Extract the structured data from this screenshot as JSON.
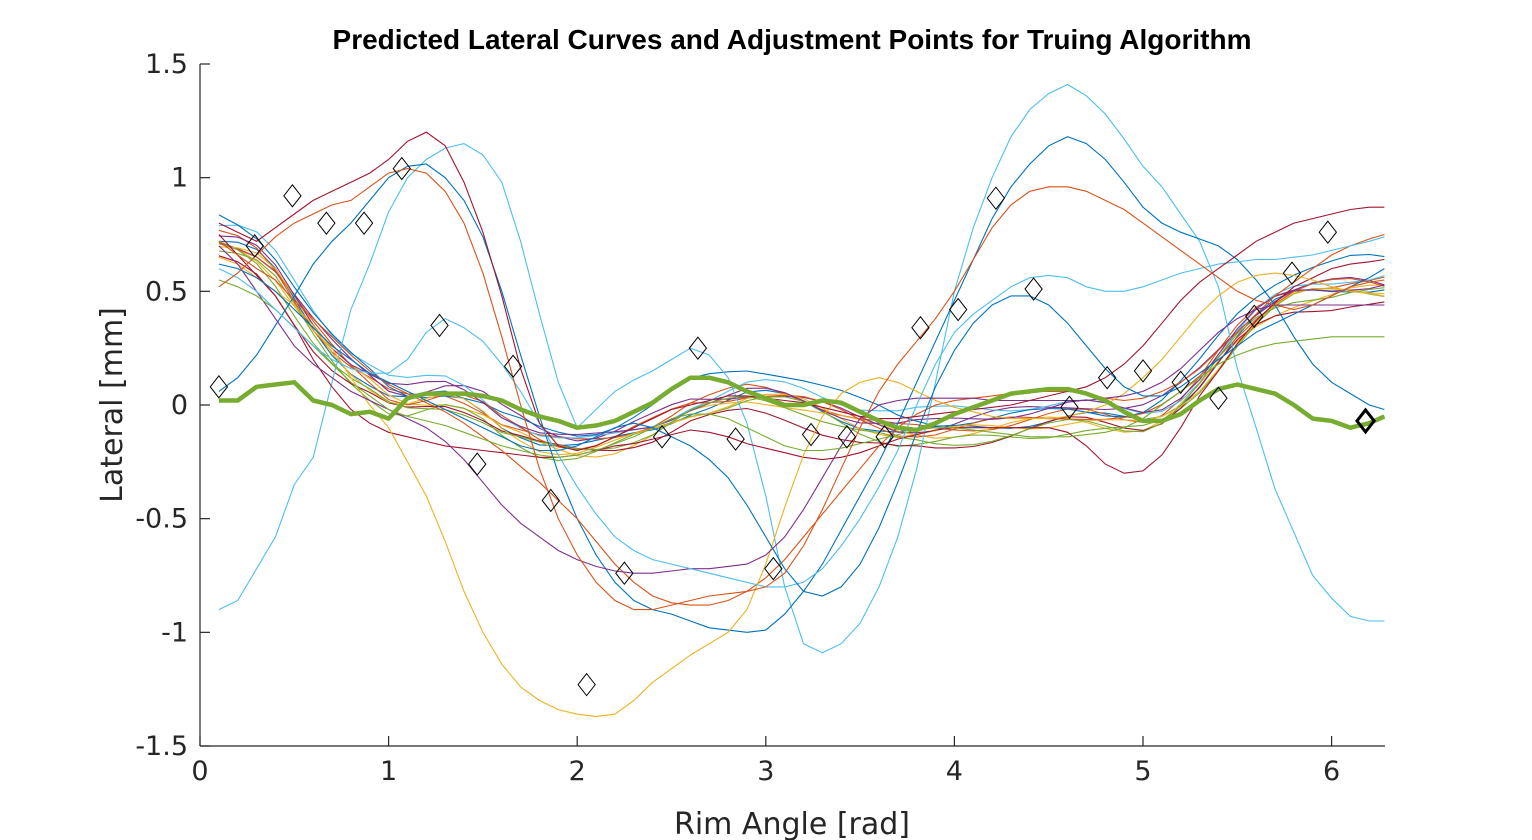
{
  "chart_data": {
    "type": "line",
    "title": "Predicted Lateral Curves and Adjustment Points for Truing Algorithm",
    "xlabel": "Rim Angle [rad]",
    "ylabel": "Lateral [mm]",
    "xlim": [
      0,
      6.2832
    ],
    "ylim": [
      -1.5,
      1.5
    ],
    "xticks": [
      0,
      1,
      2,
      3,
      4,
      5,
      6
    ],
    "xtick_labels": [
      "0",
      "1",
      "2",
      "3",
      "4",
      "5",
      "6"
    ],
    "yticks": [
      -1.5,
      -1,
      -0.5,
      0,
      0.5,
      1,
      1.5
    ],
    "ytick_labels": [
      "-1.5",
      "-1",
      "-0.5",
      "0",
      "0.5",
      "1",
      "1.5"
    ],
    "grid": false,
    "legend": "none",
    "colors": [
      "#0072BD",
      "#D95319",
      "#EDB120",
      "#7E2F8E",
      "#77AC30",
      "#4DBEEE",
      "#A2142F"
    ],
    "highlight_color": "#77AC30",
    "marker_color": "#000000",
    "x": [
      0.1,
      0.2,
      0.3,
      0.4,
      0.5,
      0.6,
      0.7,
      0.8,
      0.9,
      1.0,
      1.1,
      1.2,
      1.3,
      1.4,
      1.5,
      1.6,
      1.7,
      1.8,
      1.9,
      2.0,
      2.1,
      2.2,
      2.3,
      2.4,
      2.5,
      2.6,
      2.7,
      2.8,
      2.9,
      3.0,
      3.1,
      3.2,
      3.3,
      3.4,
      3.5,
      3.6,
      3.7,
      3.8,
      3.9,
      4.0,
      4.1,
      4.2,
      4.3,
      4.4,
      4.5,
      4.6,
      4.7,
      4.8,
      4.9,
      5.0,
      5.1,
      5.2,
      5.3,
      5.4,
      5.5,
      5.6,
      5.7,
      5.8,
      5.9,
      6.0,
      6.1,
      6.2,
      6.28
    ],
    "series": [
      {
        "values": [
          -0.9,
          -0.86,
          -0.72,
          -0.58,
          -0.35,
          -0.23,
          0.1,
          0.42,
          0.62,
          0.85,
          1.0,
          1.08,
          1.13,
          1.15,
          1.1,
          0.98,
          0.72,
          0.4,
          0.1,
          -0.1,
          -0.02,
          0.06,
          0.11,
          0.15,
          0.2,
          0.25,
          0.22,
          0.12,
          -0.08,
          -0.4,
          -0.8,
          -1.05,
          -1.09,
          -1.05,
          -0.96,
          -0.8,
          -0.58,
          -0.28,
          0.1,
          0.5,
          0.78,
          1.0,
          1.18,
          1.3,
          1.37,
          1.41,
          1.36,
          1.28,
          1.17,
          1.05,
          0.96,
          0.84,
          0.72,
          0.52,
          0.16,
          -0.1,
          -0.37,
          -0.56,
          -0.75,
          -0.85,
          -0.93,
          -0.95,
          -0.95
        ]
      },
      {
        "values": [
          0.75,
          0.66,
          0.57,
          0.48,
          0.35,
          0.2,
          0.08,
          -0.02,
          -0.08,
          -0.12,
          -0.14,
          -0.16,
          -0.18,
          -0.19,
          -0.2,
          -0.21,
          -0.22,
          -0.23,
          -0.23,
          -0.22,
          -0.2,
          -0.18,
          -0.17,
          -0.15,
          -0.13,
          -0.11,
          -0.12,
          -0.14,
          -0.17,
          -0.19,
          -0.21,
          -0.23,
          -0.24,
          -0.23,
          -0.21,
          -0.18,
          -0.15,
          -0.13,
          -0.11,
          -0.1,
          -0.1,
          -0.1,
          -0.1,
          -0.1,
          -0.1,
          -0.12,
          -0.18,
          -0.26,
          -0.3,
          -0.29,
          -0.22,
          -0.1,
          0.04,
          0.15,
          0.27,
          0.37,
          0.45,
          0.52,
          0.56,
          0.6,
          0.62,
          0.63,
          0.64
        ]
      },
      {
        "values": [
          0.06,
          0.12,
          0.22,
          0.35,
          0.48,
          0.62,
          0.72,
          0.8,
          0.9,
          1.0,
          1.05,
          1.06,
          1.0,
          0.9,
          0.74,
          0.5,
          0.22,
          -0.05,
          -0.3,
          -0.5,
          -0.66,
          -0.78,
          -0.86,
          -0.9,
          -0.92,
          -0.95,
          -0.98,
          -0.99,
          -1.0,
          -0.99,
          -0.92,
          -0.82,
          -0.7,
          -0.55,
          -0.4,
          -0.25,
          -0.08,
          0.1,
          0.28,
          0.46,
          0.64,
          0.82,
          0.96,
          1.06,
          1.14,
          1.18,
          1.15,
          1.08,
          0.98,
          0.87,
          0.8,
          0.76,
          0.73,
          0.7,
          0.64,
          0.55,
          0.44,
          0.3,
          0.18,
          0.1,
          0.05,
          0.0,
          -0.02
        ]
      },
      {
        "values": [
          0.72,
          0.66,
          0.6,
          0.55,
          0.46,
          0.38,
          0.3,
          0.22,
          0.15,
          0.09,
          0.05,
          0.01,
          -0.03,
          -0.08,
          -0.14,
          -0.2,
          -0.27,
          -0.34,
          -0.42,
          -0.5,
          -0.6,
          -0.7,
          -0.78,
          -0.84,
          -0.87,
          -0.88,
          -0.88,
          -0.86,
          -0.82,
          -0.76,
          -0.68,
          -0.58,
          -0.48,
          -0.38,
          -0.28,
          -0.18,
          -0.1,
          -0.04,
          0.0,
          0.02,
          0.03,
          0.04,
          0.05,
          0.06,
          0.06,
          0.06,
          0.05,
          0.03,
          0.02,
          0.03,
          0.06,
          0.1,
          0.16,
          0.24,
          0.32,
          0.4,
          0.48,
          0.54,
          0.6,
          0.66,
          0.7,
          0.73,
          0.75
        ]
      },
      {
        "values": [
          0.65,
          0.62,
          0.56,
          0.5,
          0.44,
          0.35,
          0.25,
          0.12,
          0.0,
          -0.1,
          -0.25,
          -0.4,
          -0.6,
          -0.82,
          -1.0,
          -1.14,
          -1.24,
          -1.3,
          -1.34,
          -1.36,
          -1.37,
          -1.36,
          -1.3,
          -1.22,
          -1.16,
          -1.1,
          -1.05,
          -1.0,
          -0.9,
          -0.7,
          -0.45,
          -0.22,
          -0.05,
          0.05,
          0.1,
          0.12,
          0.1,
          0.06,
          0.02,
          -0.01,
          -0.03,
          -0.05,
          -0.06,
          -0.06,
          -0.06,
          -0.05,
          -0.03,
          0.0,
          0.05,
          0.12,
          0.2,
          0.3,
          0.4,
          0.48,
          0.54,
          0.57,
          0.58,
          0.57,
          0.55,
          0.52,
          0.5,
          0.49,
          0.48
        ]
      },
      {
        "values": [
          0.7,
          0.62,
          0.5,
          0.38,
          0.26,
          0.18,
          0.12,
          0.06,
          0.02,
          -0.02,
          -0.06,
          -0.1,
          -0.16,
          -0.24,
          -0.34,
          -0.44,
          -0.52,
          -0.58,
          -0.64,
          -0.68,
          -0.71,
          -0.73,
          -0.74,
          -0.74,
          -0.73,
          -0.72,
          -0.72,
          -0.71,
          -0.7,
          -0.66,
          -0.58,
          -0.46,
          -0.32,
          -0.18,
          -0.06,
          0.0,
          0.02,
          0.03,
          0.03,
          0.03,
          0.03,
          0.02,
          0.02,
          0.02,
          0.02,
          0.02,
          0.02,
          0.03,
          0.04,
          0.06,
          0.1,
          0.16,
          0.24,
          0.32,
          0.38,
          0.42,
          0.44,
          0.44,
          0.44,
          0.44,
          0.44,
          0.44,
          0.44
        ]
      },
      {
        "values": [
          0.55,
          0.52,
          0.48,
          0.42,
          0.34,
          0.26,
          0.18,
          0.1,
          0.04,
          -0.02,
          -0.05,
          -0.07,
          -0.09,
          -0.12,
          -0.15,
          -0.18,
          -0.2,
          -0.22,
          -0.23,
          -0.22,
          -0.2,
          -0.17,
          -0.14,
          -0.1,
          -0.06,
          -0.04,
          -0.04,
          -0.06,
          -0.1,
          -0.14,
          -0.18,
          -0.2,
          -0.2,
          -0.19,
          -0.17,
          -0.15,
          -0.13,
          -0.11,
          -0.1,
          -0.1,
          -0.11,
          -0.12,
          -0.13,
          -0.14,
          -0.14,
          -0.14,
          -0.13,
          -0.12,
          -0.1,
          -0.06,
          0.0,
          0.06,
          0.12,
          0.18,
          0.22,
          0.25,
          0.27,
          0.28,
          0.29,
          0.3,
          0.3,
          0.3,
          0.3
        ]
      },
      {
        "values": [
          0.6,
          0.56,
          0.5,
          0.42,
          0.34,
          0.26,
          0.2,
          0.16,
          0.14,
          0.14,
          0.2,
          0.32,
          0.38,
          0.34,
          0.28,
          0.18,
          0.06,
          -0.08,
          -0.22,
          -0.36,
          -0.48,
          -0.58,
          -0.64,
          -0.68,
          -0.7,
          -0.72,
          -0.74,
          -0.76,
          -0.78,
          -0.8,
          -0.8,
          -0.78,
          -0.72,
          -0.62,
          -0.5,
          -0.36,
          -0.2,
          0.0,
          0.18,
          0.32,
          0.4,
          0.46,
          0.52,
          0.56,
          0.57,
          0.56,
          0.52,
          0.5,
          0.5,
          0.52,
          0.55,
          0.58,
          0.6,
          0.62,
          0.63,
          0.64,
          0.64,
          0.65,
          0.66,
          0.68,
          0.7,
          0.72,
          0.74
        ]
      },
      {
        "values": [
          0.8,
          0.76,
          0.72,
          0.78,
          0.84,
          0.9,
          0.94,
          0.98,
          1.02,
          1.08,
          1.16,
          1.2,
          1.14,
          0.98,
          0.76,
          0.48,
          0.16,
          -0.08,
          -0.18,
          -0.2,
          -0.18,
          -0.14,
          -0.1,
          -0.06,
          -0.02,
          0.0,
          0.02,
          0.04,
          0.04,
          0.03,
          0.02,
          0.01,
          -0.01,
          -0.03,
          -0.05,
          -0.06,
          -0.06,
          -0.05,
          -0.04,
          -0.03,
          -0.02,
          -0.01,
          0.0,
          0.02,
          0.04,
          0.06,
          0.08,
          0.12,
          0.18,
          0.26,
          0.36,
          0.46,
          0.54,
          0.6,
          0.66,
          0.72,
          0.76,
          0.8,
          0.82,
          0.84,
          0.86,
          0.87,
          0.87
        ]
      },
      {
        "values": [
          0.62,
          0.6,
          0.56,
          0.5,
          0.42,
          0.34,
          0.26,
          0.2,
          0.14,
          0.1,
          0.06,
          0.02,
          -0.02,
          -0.06,
          -0.1,
          -0.14,
          -0.18,
          -0.2,
          -0.2,
          -0.18,
          -0.14,
          -0.1,
          -0.08,
          -0.1,
          -0.14,
          -0.18,
          -0.24,
          -0.32,
          -0.44,
          -0.58,
          -0.72,
          -0.82,
          -0.84,
          -0.8,
          -0.7,
          -0.54,
          -0.34,
          -0.12,
          0.08,
          0.24,
          0.36,
          0.44,
          0.48,
          0.48,
          0.44,
          0.36,
          0.26,
          0.16,
          0.08,
          0.04,
          0.04,
          0.08,
          0.14,
          0.2,
          0.26,
          0.32,
          0.36,
          0.4,
          0.44,
          0.48,
          0.52,
          0.56,
          0.6
        ]
      },
      {
        "values": [
          0.52,
          0.58,
          0.66,
          0.74,
          0.8,
          0.84,
          0.88,
          0.9,
          0.96,
          1.02,
          1.04,
          1.02,
          0.94,
          0.8,
          0.58,
          0.3,
          0.0,
          -0.28,
          -0.5,
          -0.66,
          -0.78,
          -0.86,
          -0.9,
          -0.9,
          -0.88,
          -0.86,
          -0.84,
          -0.83,
          -0.82,
          -0.8,
          -0.74,
          -0.62,
          -0.46,
          -0.28,
          -0.1,
          0.06,
          0.18,
          0.28,
          0.38,
          0.5,
          0.64,
          0.78,
          0.88,
          0.94,
          0.96,
          0.96,
          0.94,
          0.9,
          0.86,
          0.8,
          0.74,
          0.68,
          0.62,
          0.56,
          0.5,
          0.46,
          0.44,
          0.42,
          0.44,
          0.48,
          0.52,
          0.54,
          0.55
        ]
      }
    ],
    "bundle_series": [
      {
        "base_offset": 0.0
      },
      {
        "base_offset": 0.03
      },
      {
        "base_offset": -0.03
      },
      {
        "base_offset": 0.06
      },
      {
        "base_offset": -0.06
      },
      {
        "base_offset": 0.09
      },
      {
        "base_offset": -0.09
      },
      {
        "base_offset": 0.12
      },
      {
        "base_offset": 0.02
      },
      {
        "base_offset": -0.02
      },
      {
        "base_offset": 0.05
      },
      {
        "base_offset": -0.05
      }
    ],
    "bundle_base": [
      0.72,
      0.7,
      0.66,
      0.58,
      0.46,
      0.34,
      0.24,
      0.16,
      0.1,
      0.04,
      0.02,
      0.03,
      0.04,
      0.02,
      -0.02,
      -0.08,
      -0.12,
      -0.16,
      -0.18,
      -0.19,
      -0.18,
      -0.16,
      -0.13,
      -0.1,
      -0.06,
      -0.02,
      0.0,
      0.02,
      0.04,
      0.04,
      0.03,
      0.01,
      -0.02,
      -0.05,
      -0.08,
      -0.1,
      -0.12,
      -0.12,
      -0.12,
      -0.11,
      -0.1,
      -0.09,
      -0.08,
      -0.07,
      -0.06,
      -0.05,
      -0.05,
      -0.06,
      -0.07,
      -0.07,
      -0.04,
      0.02,
      0.1,
      0.2,
      0.3,
      0.38,
      0.44,
      0.48,
      0.5,
      0.51,
      0.52,
      0.52,
      0.52
    ],
    "bundle_swing": [
      0.0,
      0.0,
      0.0,
      0.0,
      0.0,
      0.0,
      0.0,
      0.0,
      0.0,
      0.0,
      0.0,
      0.0,
      0.0,
      0.0,
      0.0,
      0.0,
      0.0,
      0.0,
      0.0,
      0.0,
      0.0,
      0.0,
      0.0,
      0.0,
      0.0,
      0.0,
      0.0,
      0.0,
      0.0,
      0.0,
      0.0,
      0.0,
      0.0,
      0.0,
      0.0,
      0.0,
      0.0,
      0.0,
      0.0,
      0.0,
      0.0,
      0.0,
      0.0,
      0.0,
      0.0,
      0.0,
      0.0,
      0.0,
      0.0,
      0.0,
      0.0,
      0.0,
      0.0,
      0.0,
      0.0,
      0.0,
      0.0,
      0.0,
      0.0,
      0.0,
      0.0,
      0.0,
      0.0
    ],
    "highlight_series": {
      "x": [
        0.1,
        0.2,
        0.3,
        0.4,
        0.5,
        0.6,
        0.7,
        0.8,
        0.9,
        1.0,
        1.1,
        1.2,
        1.3,
        1.4,
        1.5,
        1.6,
        1.7,
        1.8,
        1.9,
        2.0,
        2.1,
        2.2,
        2.3,
        2.4,
        2.5,
        2.6,
        2.7,
        2.8,
        2.9,
        3.0,
        3.1,
        3.2,
        3.3,
        3.4,
        3.5,
        3.6,
        3.7,
        3.8,
        3.9,
        4.0,
        4.1,
        4.2,
        4.3,
        4.4,
        4.5,
        4.6,
        4.7,
        4.8,
        4.9,
        5.0,
        5.1,
        5.2,
        5.3,
        5.4,
        5.5,
        5.6,
        5.7,
        5.8,
        5.9,
        6.0,
        6.1,
        6.2,
        6.28
      ],
      "values": [
        0.02,
        0.02,
        0.08,
        0.09,
        0.1,
        0.02,
        0.0,
        -0.04,
        -0.03,
        -0.06,
        0.03,
        0.05,
        0.05,
        0.05,
        0.04,
        0.02,
        -0.02,
        -0.05,
        -0.07,
        -0.1,
        -0.09,
        -0.07,
        -0.03,
        0.01,
        0.07,
        0.12,
        0.12,
        0.1,
        0.06,
        0.03,
        0.0,
        0.0,
        0.02,
        0.01,
        -0.03,
        -0.07,
        -0.1,
        -0.11,
        -0.08,
        -0.04,
        -0.01,
        0.02,
        0.05,
        0.06,
        0.07,
        0.07,
        0.05,
        0.02,
        -0.03,
        -0.07,
        -0.07,
        -0.04,
        0.02,
        0.07,
        0.09,
        0.07,
        0.05,
        0.0,
        -0.06,
        -0.07,
        -0.1,
        -0.08,
        -0.05
      ]
    },
    "adjustment_points": [
      {
        "x": 0.1,
        "y": 0.08
      },
      {
        "x": 0.29,
        "y": 0.7
      },
      {
        "x": 0.49,
        "y": 0.92
      },
      {
        "x": 0.67,
        "y": 0.8
      },
      {
        "x": 0.87,
        "y": 0.8
      },
      {
        "x": 1.07,
        "y": 1.04
      },
      {
        "x": 1.27,
        "y": 0.35
      },
      {
        "x": 1.47,
        "y": -0.26
      },
      {
        "x": 1.66,
        "y": 0.17
      },
      {
        "x": 1.86,
        "y": -0.42
      },
      {
        "x": 2.05,
        "y": -1.23
      },
      {
        "x": 2.25,
        "y": -0.74
      },
      {
        "x": 2.45,
        "y": -0.14
      },
      {
        "x": 2.64,
        "y": 0.25
      },
      {
        "x": 2.84,
        "y": -0.15
      },
      {
        "x": 3.04,
        "y": -0.72
      },
      {
        "x": 3.24,
        "y": -0.13
      },
      {
        "x": 3.43,
        "y": -0.14
      },
      {
        "x": 3.63,
        "y": -0.14
      },
      {
        "x": 3.82,
        "y": 0.34
      },
      {
        "x": 4.02,
        "y": 0.42
      },
      {
        "x": 4.22,
        "y": 0.91
      },
      {
        "x": 4.42,
        "y": 0.51
      },
      {
        "x": 4.61,
        "y": -0.01
      },
      {
        "x": 4.81,
        "y": 0.12
      },
      {
        "x": 5.0,
        "y": 0.15
      },
      {
        "x": 5.2,
        "y": 0.1
      },
      {
        "x": 5.4,
        "y": 0.03
      },
      {
        "x": 5.59,
        "y": 0.39
      },
      {
        "x": 5.79,
        "y": 0.58
      },
      {
        "x": 5.98,
        "y": 0.76
      },
      {
        "x": 6.18,
        "y": -0.07
      }
    ],
    "emphasized_point": {
      "x": 6.18,
      "y": -0.07
    }
  }
}
